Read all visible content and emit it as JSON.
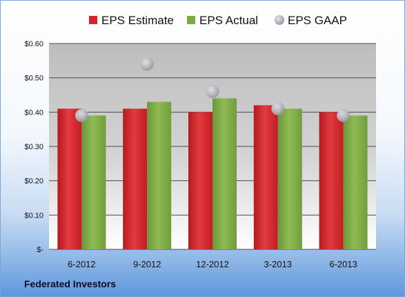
{
  "chart_data": {
    "type": "bar",
    "categories": [
      "6-2012",
      "9-2012",
      "12-2012",
      "3-2013",
      "6-2013"
    ],
    "series": [
      {
        "name": "EPS Estimate",
        "kind": "bar",
        "color": "#d0252c",
        "values": [
          0.41,
          0.41,
          0.4,
          0.42,
          0.4
        ]
      },
      {
        "name": "EPS Actual",
        "kind": "bar",
        "color": "#7faa45",
        "values": [
          0.39,
          0.43,
          0.44,
          0.41,
          0.39
        ]
      },
      {
        "name": "EPS GAAP",
        "kind": "marker",
        "color": "#b8bcc2",
        "values": [
          0.39,
          0.54,
          0.46,
          0.41,
          0.39
        ]
      }
    ],
    "ylim": [
      0,
      0.6
    ],
    "y_ticks": [
      0,
      0.1,
      0.2,
      0.3,
      0.4,
      0.5,
      0.6
    ],
    "y_tick_labels": [
      "$-",
      "$0.10",
      "$0.20",
      "$0.30",
      "$0.40",
      "$0.50",
      "$0.60"
    ],
    "legend_position": "top",
    "grid": true
  },
  "footer": {
    "label": "Federated Investors"
  }
}
